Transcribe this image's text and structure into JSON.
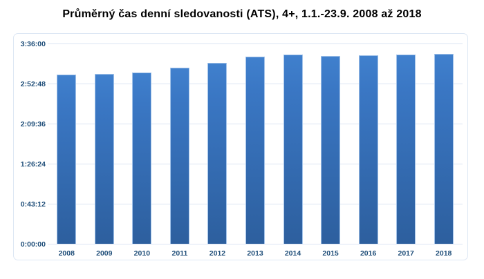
{
  "title": "Průměrný čas denní sledovanosti (ATS), 4+, 1.1.-23.9. 2008 až 2018",
  "colors": {
    "title_text": "#000000",
    "axis_text": "#1f4e79",
    "gridline": "#dbe4f3",
    "frame_border": "#dde7f4",
    "bar_top": "#4080cd",
    "bar_bottom": "#2d5f9e",
    "bar_edge": "#a3c3e9",
    "background": "#ffffff"
  },
  "chart_data": {
    "type": "bar",
    "title": "Průměrný čas denní sledovanosti (ATS), 4+, 1.1.-23.9. 2008 až 2018",
    "xlabel": "",
    "ylabel": "",
    "categories": [
      "2008",
      "2009",
      "2010",
      "2011",
      "2012",
      "2013",
      "2014",
      "2015",
      "2016",
      "2017",
      "2018"
    ],
    "values_seconds": [
      10990,
      11000,
      11110,
      11420,
      11730,
      12120,
      12280,
      12170,
      12210,
      12250,
      12320
    ],
    "values_hms": [
      "3:03:10",
      "3:03:20",
      "3:05:10",
      "3:10:20",
      "3:15:30",
      "3:22:00",
      "3:24:40",
      "3:22:50",
      "3:23:30",
      "3:24:10",
      "3:25:20"
    ],
    "y_ticks": [
      "0:00:00",
      "0:43:12",
      "1:26:24",
      "2:09:36",
      "2:52:48",
      "3:36:00"
    ],
    "y_tick_seconds": [
      0,
      2592,
      5184,
      7776,
      10368,
      12960
    ],
    "ylim_seconds": [
      0,
      12960
    ],
    "grid": true,
    "legend": false,
    "single_series_color": "blue-gradient"
  }
}
